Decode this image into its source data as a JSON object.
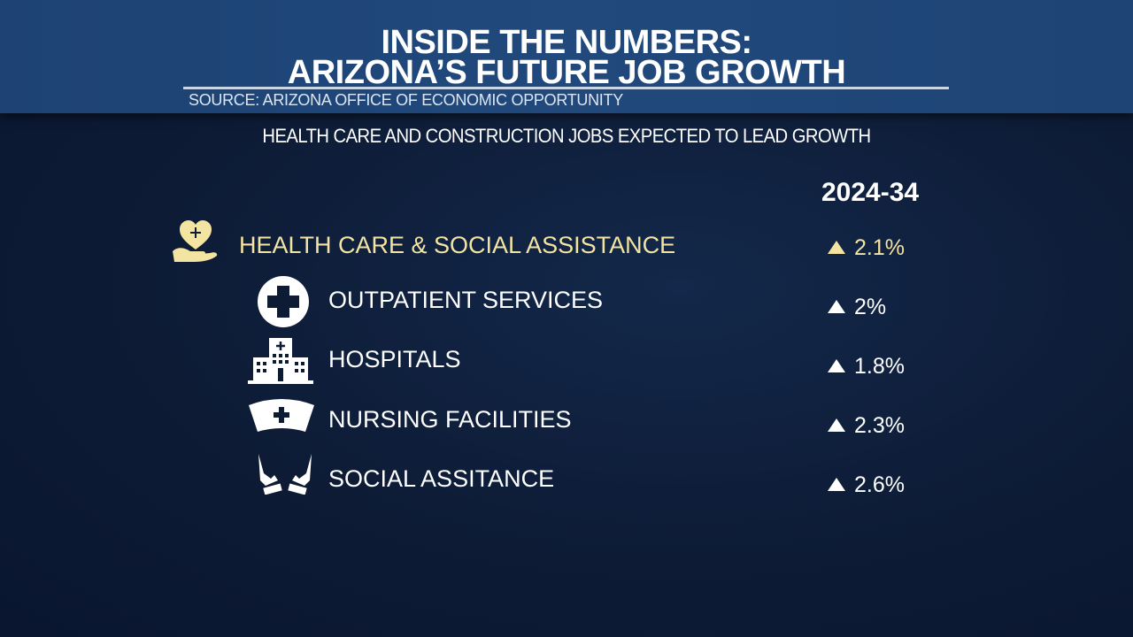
{
  "header": {
    "title_line1": "INSIDE THE NUMBERS:",
    "title_line2": "ARIZONA’S FUTURE JOB GROWTH",
    "source": "SOURCE: ARIZONA OFFICE OF ECONOMIC OPPORTUNITY"
  },
  "subtitle": "HEALTH CARE AND CONSTRUCTION JOBS EXPECTED TO LEAD GROWTH",
  "column_header": "2024-34",
  "colors": {
    "highlight": "#f4e4a1",
    "header": "#21497c",
    "background": "#0d1b35"
  },
  "rows": [
    {
      "label": "HEALTH CARE & SOCIAL ASSISTANCE",
      "value": "2.1%",
      "icon": "heart-hand-icon",
      "trend": "up"
    },
    {
      "label": "OUTPATIENT SERVICES",
      "value": "2%",
      "icon": "medical-cross-icon",
      "trend": "up"
    },
    {
      "label": "HOSPITALS",
      "value": "1.8%",
      "icon": "hospital-icon",
      "trend": "up"
    },
    {
      "label": "NURSING FACILITIES",
      "value": "2.3%",
      "icon": "nurse-cap-icon",
      "trend": "up"
    },
    {
      "label": "SOCIAL ASSITANCE",
      "value": "2.6%",
      "icon": "caring-hands-icon",
      "trend": "up"
    }
  ]
}
